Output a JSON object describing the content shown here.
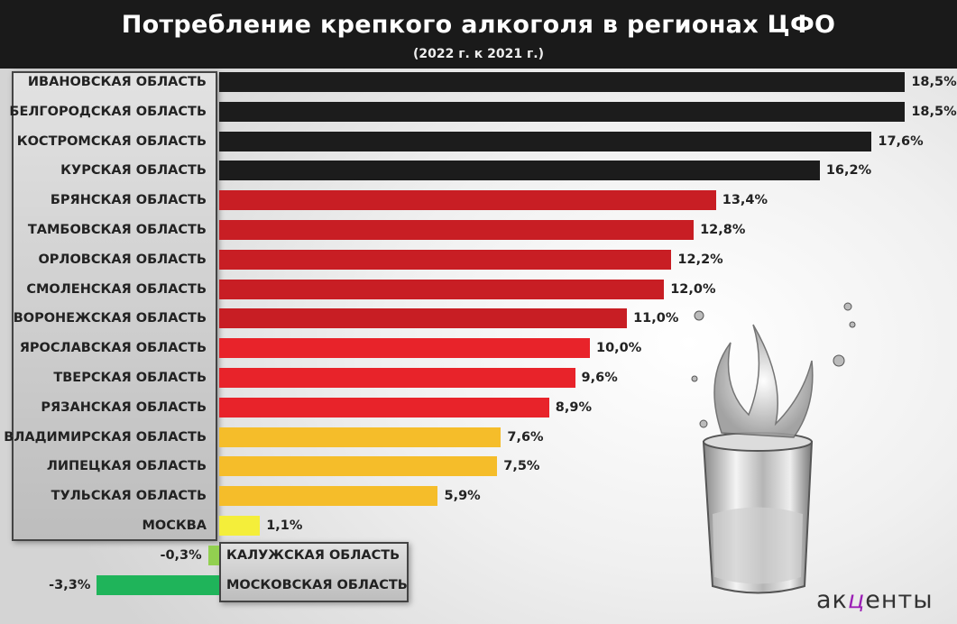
{
  "header": {
    "title": "Потребление крепкого алкоголя в регионах ЦФО",
    "subtitle": "(2022 г. к 2021 г.)"
  },
  "logo": {
    "pre": "ак",
    "accent": "ц",
    "post": "енты"
  },
  "colors": {
    "black": "#1c1c1c",
    "dark_red": "#c81e24",
    "red": "#e8232a",
    "orange": "#f5bd2a",
    "yellow": "#f4ee3a",
    "light_green": "#92d050",
    "green": "#1fb45a"
  },
  "chart_data": {
    "type": "bar",
    "orientation": "horizontal",
    "title": "Потребление крепкого алкоголя в регионах ЦФО",
    "subtitle": "(2022 г. к 2021 г.)",
    "unit": "%",
    "categories": [
      "ИВАНОВСКАЯ ОБЛАСТЬ",
      "БЕЛГОРОДСКАЯ ОБЛАСТЬ",
      "КОСТРОМСКАЯ ОБЛАСТЬ",
      "КУРСКАЯ ОБЛАСТЬ",
      "БРЯНСКАЯ ОБЛАСТЬ",
      "ТАМБОВСКАЯ ОБЛАСТЬ",
      "ОРЛОВСКАЯ ОБЛАСТЬ",
      "СМОЛЕНСКАЯ ОБЛАСТЬ",
      "ВОРОНЕЖСКАЯ ОБЛАСТЬ",
      "ЯРОСЛАВСКАЯ ОБЛАСТЬ",
      "ТВЕРСКАЯ ОБЛАСТЬ",
      "РЯЗАНСКАЯ ОБЛАСТЬ",
      "ВЛАДИМИРСКАЯ ОБЛАСТЬ",
      "ЛИПЕЦКАЯ ОБЛАСТЬ",
      "ТУЛЬСКАЯ ОБЛАСТЬ",
      "МОСКВА",
      "КАЛУЖСКАЯ ОБЛАСТЬ",
      "МОСКОВСКАЯ ОБЛАСТЬ"
    ],
    "values": [
      18.5,
      18.5,
      17.6,
      16.2,
      13.4,
      12.8,
      12.2,
      12.0,
      11.0,
      10.0,
      9.6,
      8.9,
      7.6,
      7.5,
      5.9,
      1.1,
      -0.3,
      -3.3
    ],
    "value_labels": [
      "18,5%",
      "18,5%",
      "17,6%",
      "16,2%",
      "13,4%",
      "12,8%",
      "12,2%",
      "12,0%",
      "11,0%",
      "10,0%",
      "9,6%",
      "8,9%",
      "7,6%",
      "7,5%",
      "5,9%",
      "1,1%",
      "-0,3%",
      "-3,3%"
    ],
    "bar_colors": [
      "black",
      "black",
      "black",
      "black",
      "dark_red",
      "dark_red",
      "dark_red",
      "dark_red",
      "dark_red",
      "red",
      "red",
      "red",
      "orange",
      "orange",
      "orange",
      "yellow",
      "light_green",
      "green"
    ],
    "xlim": [
      -3.3,
      18.5
    ],
    "grid": false,
    "legend": "none"
  }
}
